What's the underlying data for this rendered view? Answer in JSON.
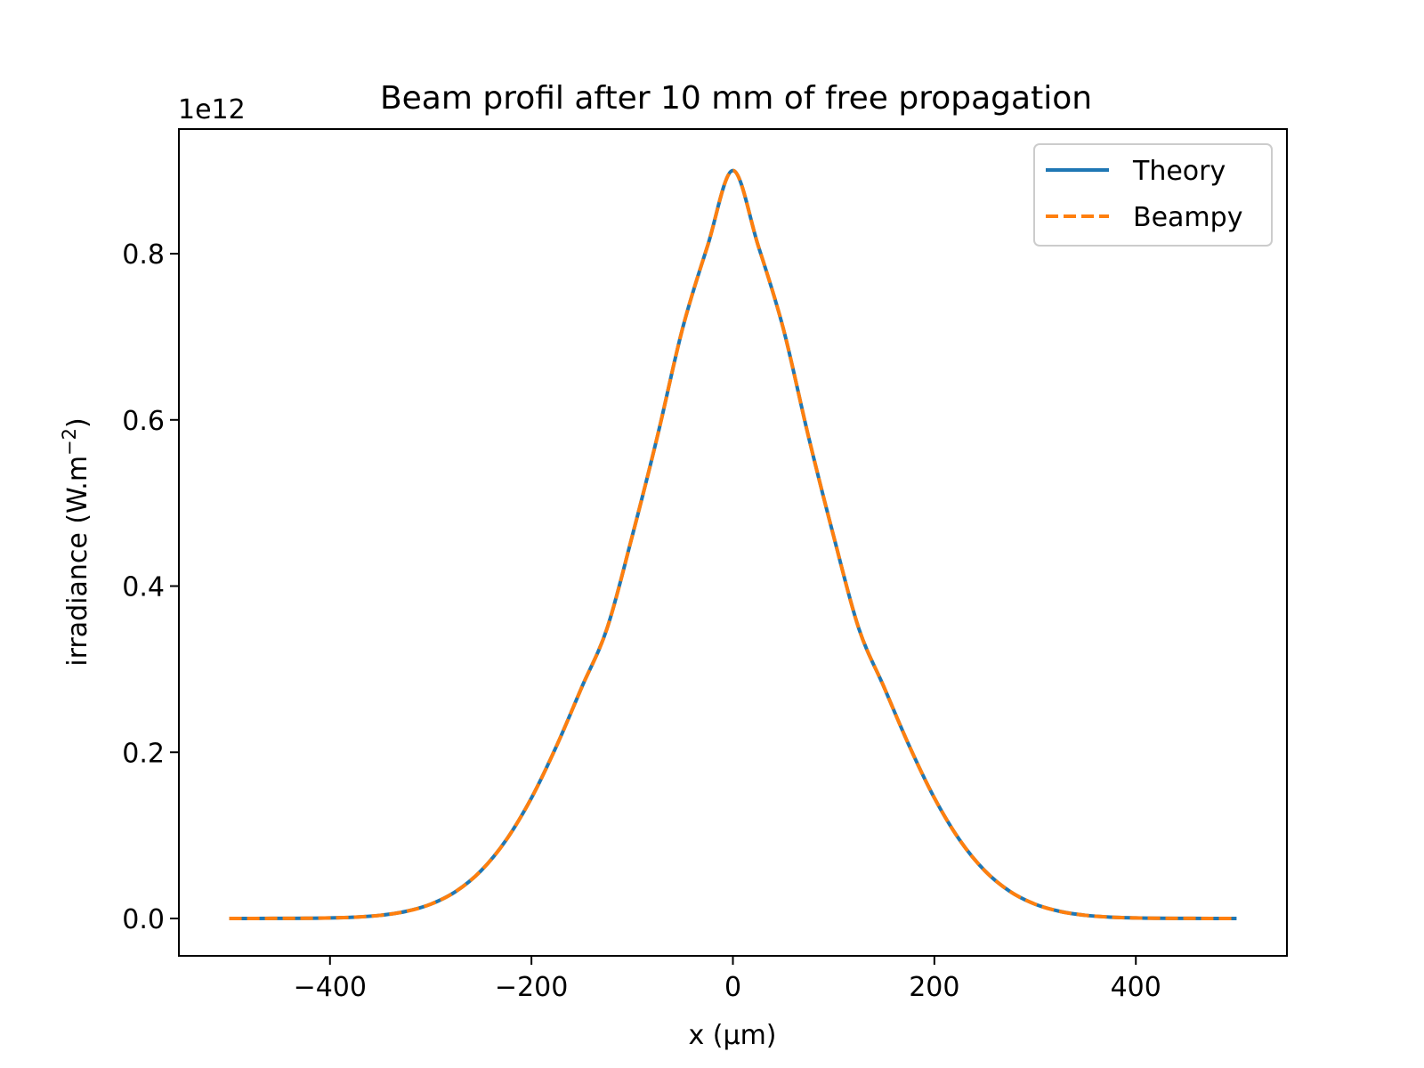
{
  "chart_data": {
    "type": "line",
    "title": "Beam profil after 10 mm of free propagation",
    "xlabel": "x (µm)",
    "ylabel": "irradiance (W.m",
    "ylabel_sup": "−2",
    "ylabel_close": ")",
    "offset_text": "1e12",
    "xlim": [
      -550,
      550
    ],
    "ylim": [
      -0.045,
      0.95
    ],
    "y_scale_factor": 1000000000000.0,
    "xticks": [
      -400,
      -200,
      0,
      200,
      400
    ],
    "xtick_labels": [
      "−400",
      "−200",
      "0",
      "200",
      "400"
    ],
    "yticks": [
      0.0,
      0.2,
      0.4,
      0.6,
      0.8
    ],
    "ytick_labels": [
      "0.0",
      "0.2",
      "0.4",
      "0.6",
      "0.8"
    ],
    "grid": false,
    "legend_position": "top-right",
    "x": [
      -500,
      -475,
      -450,
      -425,
      -400,
      -375,
      -350,
      -325,
      -300,
      -275,
      -250,
      -225,
      -200,
      -175,
      -150,
      -125,
      -100,
      -75,
      -50,
      -25,
      0,
      25,
      50,
      75,
      100,
      125,
      150,
      175,
      200,
      225,
      250,
      275,
      300,
      325,
      350,
      375,
      400,
      425,
      450,
      475,
      500
    ],
    "series": [
      {
        "name": "Theory",
        "color": "#1f77b4",
        "style": "solid",
        "values": [
          0.0,
          0.0,
          0.0001,
          0.0002,
          0.0006,
          0.0016,
          0.0038,
          0.0084,
          0.0172,
          0.0326,
          0.0575,
          0.0946,
          0.145,
          0.2078,
          0.2784,
          0.3489,
          0.46,
          0.58,
          0.71,
          0.81,
          0.9,
          0.81,
          0.71,
          0.58,
          0.46,
          0.3489,
          0.2784,
          0.2078,
          0.145,
          0.0946,
          0.0575,
          0.0326,
          0.0172,
          0.0084,
          0.0038,
          0.0016,
          0.0006,
          0.0002,
          0.0001,
          0.0,
          0.0
        ]
      },
      {
        "name": "Beampy",
        "color": "#ff7f0e",
        "style": "dashed",
        "values": [
          0.0,
          0.0,
          0.0001,
          0.0002,
          0.0006,
          0.0016,
          0.0038,
          0.0084,
          0.0172,
          0.0326,
          0.0575,
          0.0946,
          0.145,
          0.2078,
          0.2784,
          0.3489,
          0.46,
          0.58,
          0.71,
          0.81,
          0.9,
          0.81,
          0.71,
          0.58,
          0.46,
          0.3489,
          0.2784,
          0.2078,
          0.145,
          0.0946,
          0.0575,
          0.0326,
          0.0172,
          0.0084,
          0.0038,
          0.0016,
          0.0006,
          0.0002,
          0.0001,
          0.0,
          0.0
        ]
      }
    ]
  }
}
